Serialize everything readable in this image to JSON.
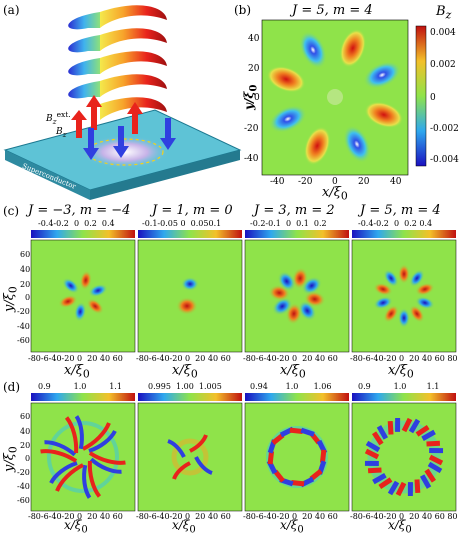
{
  "panels": {
    "a": {
      "label": "(a)",
      "bz_ext_label": "B",
      "bz_ext_sub": "z",
      "bz_ext_sup": "ext.",
      "bz_label": "B",
      "bz_sub": "z",
      "substrate_label": "Superconductor"
    },
    "b": {
      "label": "(b)",
      "title": "J = 5,  m = 4",
      "colorbar_label": "B",
      "colorbar_sub": "z",
      "colorbar_ticks": [
        "0.004",
        "0.002",
        "0",
        "-0.002",
        "-0.004"
      ],
      "xlabel": "x/ξ",
      "xlabel_sub": "0",
      "ylabel": "y/ξ",
      "ylabel_sub": "0",
      "xticks": [
        "-40",
        "-20",
        "0",
        "20",
        "40"
      ],
      "yticks": [
        "40",
        "20",
        "0",
        "-20",
        "-40"
      ]
    },
    "c": {
      "label": "(c)",
      "titles": [
        "J = −3,  m = −4",
        "J = 1,  m = 0",
        "J = 3,  m = 2",
        "J = 5,  m = 4"
      ],
      "colorbar_ticks": [
        "-0.4-0.2  0  0.2  0.4",
        "-0.1-0.05 0  0.050.1",
        "-0.2-0.1  0  0.1  0.2",
        "-0.4-0.2  0  0.2 0.4"
      ],
      "xlabel": "x/ξ",
      "xlabel_sub": "0",
      "ylabel": "y/ξ",
      "ylabel_sub": "0",
      "xticks": [
        "-80-6-40-20 0  20 40 60",
        "-80-6-40-20 0  20 40 60",
        "-80-6-40-20 0  20 40 60",
        "-80-6-40-20 0  20 40 60 80"
      ],
      "yticks": [
        "60",
        "40",
        "20",
        "0",
        "-20",
        "-40",
        "-60"
      ]
    },
    "d": {
      "label": "(d)",
      "colorbar_ticks": [
        "0.9         1.0         1.1",
        "0.995  1.00  1.005",
        "0.94       1.0      1.06",
        "0.9         1.0        1.1"
      ],
      "xlabel": "x/ξ",
      "xlabel_sub": "0",
      "ylabel": "y/ξ",
      "ylabel_sub": "0",
      "xticks": [
        "-80-6-40-20 0  20 40 60",
        "-80-6-40-20 0  20 40 60",
        "-80-6-40-20 0  20 40 60",
        "-80-6-40-20 0  20 40 60 80"
      ],
      "yticks": [
        "60",
        "40",
        "20",
        "0",
        "-20",
        "-40",
        "-60"
      ]
    }
  },
  "colors": {
    "background_field": "#8fe34a",
    "red": "#e8231c",
    "blue": "#2f3fe0",
    "orange": "#f5a623",
    "cyan": "#34c6e8",
    "substrate": "#5ec3d6"
  }
}
